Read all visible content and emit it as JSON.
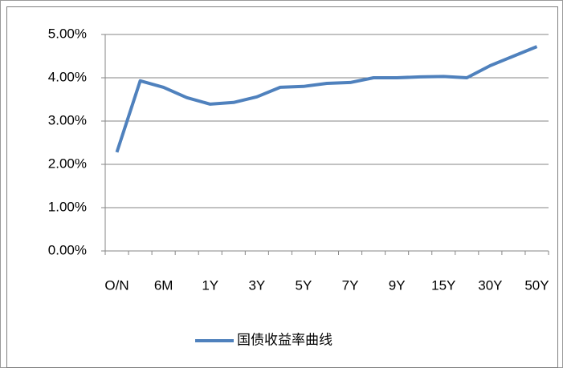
{
  "chart_data": {
    "type": "line",
    "categories": [
      "O/N",
      null,
      "6M",
      null,
      "1Y",
      null,
      "3Y",
      null,
      "5Y",
      null,
      "7Y",
      null,
      "9Y",
      null,
      "15Y",
      null,
      "30Y",
      null,
      "50Y"
    ],
    "series": [
      {
        "name": "国债收益率曲线",
        "color": "#4f81bd",
        "values": [
          2.28,
          3.93,
          3.78,
          3.54,
          3.39,
          3.43,
          3.56,
          3.78,
          3.8,
          3.87,
          3.89,
          4.0,
          4.0,
          4.02,
          4.03,
          4.0,
          4.28,
          4.5,
          4.72
        ]
      }
    ],
    "ylim": [
      0,
      5
    ],
    "yticks": [
      {
        "value": 0,
        "label": "0.00%"
      },
      {
        "value": 1,
        "label": "1.00%"
      },
      {
        "value": 2,
        "label": "2.00%"
      },
      {
        "value": 3,
        "label": "3.00%"
      },
      {
        "value": 4,
        "label": "4.00%"
      },
      {
        "value": 5,
        "label": "5.00%"
      }
    ],
    "grid": true,
    "legend": "bottom"
  }
}
